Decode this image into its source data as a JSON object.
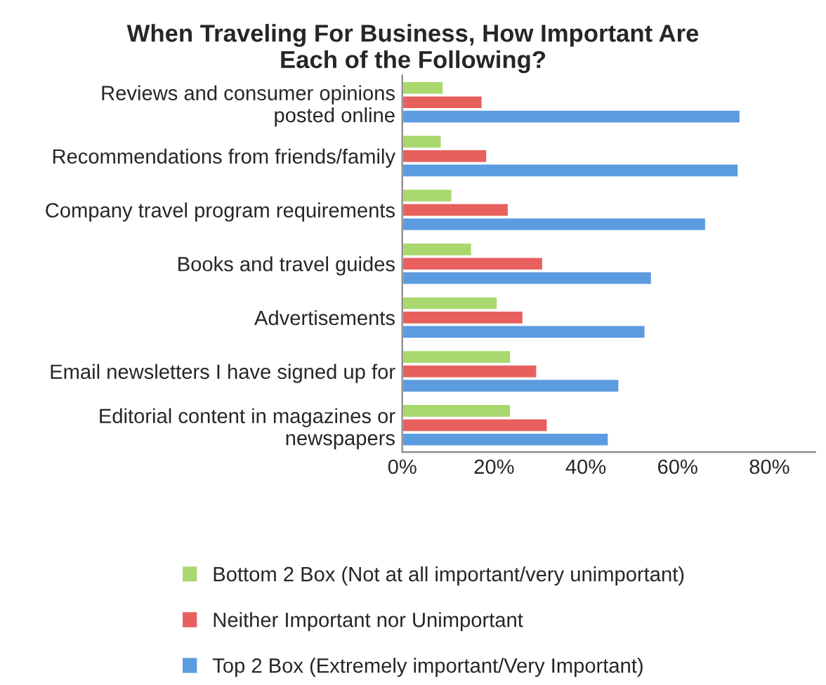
{
  "chart_data": {
    "type": "bar",
    "orientation": "horizontal",
    "title": "When Traveling For Business, How Important Are\nEach of the Following?",
    "categories": [
      "Reviews and consumer opinions\nposted online",
      "Recommendations from friends/family",
      "Company travel program requirements",
      "Books and travel guides",
      "Advertisements",
      "Email newsletters I have signed up for",
      "Editorial content in magazines or\nnewspapers"
    ],
    "series": [
      {
        "name": "Bottom 2 Box (Not at all important/very unimportant)",
        "color": "#a9d86e",
        "values": [
          9.0,
          8.6,
          10.9,
          15.2,
          20.8,
          23.7,
          23.7
        ]
      },
      {
        "name": "Neither Important nor Unimportant",
        "color": "#e8605d",
        "values": [
          17.5,
          18.5,
          23.2,
          30.7,
          26.4,
          29.4,
          31.7
        ]
      },
      {
        "name": "Top 2 Box (Extremely important/Very Important)",
        "color": "#5b9be0",
        "values": [
          73.7,
          73.3,
          66.2,
          54.4,
          53.0,
          47.3,
          45.0
        ]
      }
    ],
    "xlim": [
      0,
      90
    ],
    "xticks": [
      {
        "value": 0,
        "label": "0%"
      },
      {
        "value": 20,
        "label": "20%"
      },
      {
        "value": 40,
        "label": "40%"
      },
      {
        "value": 60,
        "label": "60%"
      },
      {
        "value": 80,
        "label": "80%"
      }
    ],
    "grid": false,
    "legend": "bottom"
  }
}
